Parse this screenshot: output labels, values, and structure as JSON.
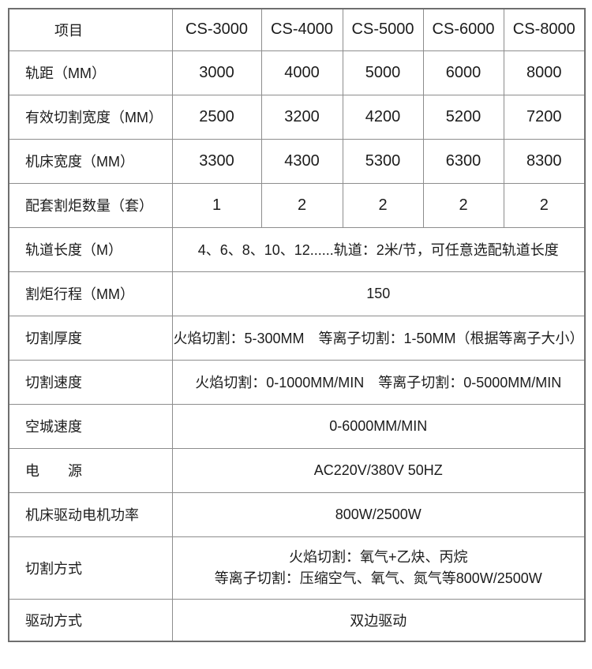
{
  "colors": {
    "background": "#ffffff",
    "border_inner": "#8d8d8d",
    "border_outer": "#6f6f6f",
    "text": "#1c1c1c"
  },
  "table": {
    "header": {
      "item_label": "项目",
      "models": [
        "CS-3000",
        "CS-4000",
        "CS-5000",
        "CS-6000",
        "CS-8000"
      ]
    },
    "rows": [
      {
        "label": "轨距（MM）",
        "values": [
          "3000",
          "4000",
          "5000",
          "6000",
          "8000"
        ]
      },
      {
        "label": "有效切割宽度（MM）",
        "values": [
          "2500",
          "3200",
          "4200",
          "5200",
          "7200"
        ]
      },
      {
        "label": "机床宽度（MM）",
        "values": [
          "3300",
          "4300",
          "5300",
          "6300",
          "8300"
        ]
      },
      {
        "label": "配套割炬数量（套）",
        "values": [
          "1",
          "2",
          "2",
          "2",
          "2"
        ]
      },
      {
        "label": "轨道长度（M）",
        "span": "4、6、8、10、12......轨道：2米/节，可任意选配轨道长度"
      },
      {
        "label": "割炬行程（MM）",
        "span": "150"
      },
      {
        "label": "切割厚度",
        "span": "火焰切割：5-300MM　等离子切割：1-50MM（根据等离子大小）"
      },
      {
        "label": "切割速度",
        "span": "火焰切割：0-1000MM/MIN　等离子切割：0-5000MM/MIN"
      },
      {
        "label": "空城速度",
        "span": "0-6000MM/MIN"
      },
      {
        "label": "电　　源",
        "span": "AC220V/380V 50HZ"
      },
      {
        "label": "机床驱动电机功率",
        "span": "800W/2500W"
      },
      {
        "label": "切割方式",
        "lines": [
          "火焰切割：氧气+乙炔、丙烷",
          "等离子切割：压缩空气、氧气、氮气等800W/2500W"
        ]
      },
      {
        "label": "驱动方式",
        "span": "双边驱动"
      }
    ]
  }
}
